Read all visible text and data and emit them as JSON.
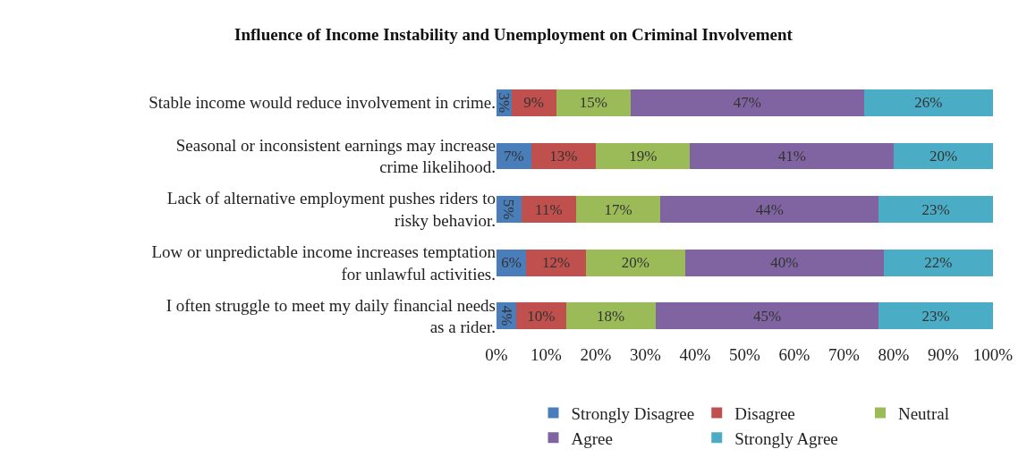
{
  "chart_data": {
    "type": "bar",
    "orientation": "horizontal",
    "stacked": true,
    "title": "Influence of Income Instability and Unemployment on Criminal Involvement",
    "categories": [
      "Stable income would reduce involvement in crime.",
      "Seasonal or inconsistent earnings may increase crime likelihood.",
      "Lack of alternative employment pushes riders to risky behavior.",
      "Low or unpredictable income increases temptation for unlawful activities.",
      "I often struggle to meet my daily financial needs as a rider."
    ],
    "series": [
      {
        "name": "Strongly Disagree",
        "color": "#4a7ebb",
        "values": [
          3,
          7,
          5,
          6,
          4
        ],
        "value_labels": [
          "3%",
          "7%",
          "5%",
          "6%",
          "4%"
        ]
      },
      {
        "name": "Disagree",
        "color": "#c0504d",
        "values": [
          9,
          13,
          11,
          12,
          10
        ],
        "value_labels": [
          "9%",
          "13%",
          "11%",
          "12%",
          "10%"
        ]
      },
      {
        "name": "Neutral",
        "color": "#9bbb59",
        "values": [
          15,
          19,
          17,
          20,
          18
        ],
        "value_labels": [
          "15%",
          "19%",
          "17%",
          "20%",
          "18%"
        ]
      },
      {
        "name": "Agree",
        "color": "#8064a2",
        "values": [
          47,
          41,
          44,
          40,
          45
        ],
        "value_labels": [
          "47%",
          "41%",
          "44%",
          "40%",
          "45%"
        ]
      },
      {
        "name": "Strongly Agree",
        "color": "#4bacc6",
        "values": [
          26,
          20,
          23,
          22,
          23
        ],
        "value_labels": [
          "26%",
          "20%",
          "23%",
          "22%",
          "23%"
        ]
      }
    ],
    "xlim": [
      0,
      100
    ],
    "xticks": [
      {
        "value": 0,
        "label": "0%"
      },
      {
        "value": 10,
        "label": "10%"
      },
      {
        "value": 20,
        "label": "20%"
      },
      {
        "value": 30,
        "label": "30%"
      },
      {
        "value": 40,
        "label": "40%"
      },
      {
        "value": 50,
        "label": "50%"
      },
      {
        "value": 60,
        "label": "60%"
      },
      {
        "value": 70,
        "label": "70%"
      },
      {
        "value": 80,
        "label": "80%"
      },
      {
        "value": 90,
        "label": "90%"
      },
      {
        "value": 100,
        "label": "100%"
      }
    ],
    "grid": false,
    "legend": "bottom"
  }
}
